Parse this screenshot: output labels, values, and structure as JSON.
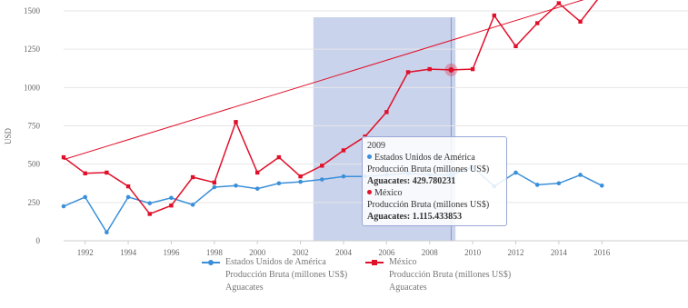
{
  "colors": {
    "usa": "#3b8fd9",
    "mexico": "#e0102a",
    "trend": "#e0102a",
    "highlight_band": "#9eaedd",
    "crosshair": "#8897cf",
    "grid": "#e6e6e6"
  },
  "chart_data": {
    "type": "line",
    "ylabel": "USD",
    "xlabel": "",
    "xlim": [
      1991,
      2020
    ],
    "ylim": [
      0,
      1500
    ],
    "yticks": [
      0,
      250,
      500,
      750,
      1000,
      1250,
      1500
    ],
    "ytick_labels": [
      "0",
      "250",
      "500",
      "750",
      "1000",
      "1250",
      "1500"
    ],
    "xticks": [
      1992,
      1994,
      1996,
      1998,
      2000,
      2002,
      2004,
      2006,
      2008,
      2010,
      2012,
      2014,
      2016
    ],
    "xtick_labels": [
      "1992",
      "1994",
      "1996",
      "1998",
      "2000",
      "2002",
      "2004",
      "2006",
      "2008",
      "2010",
      "2012",
      "2014",
      "2016"
    ],
    "x": [
      1991,
      1992,
      1993,
      1994,
      1995,
      1996,
      1997,
      1998,
      1999,
      2000,
      2001,
      2002,
      2003,
      2004,
      2005,
      2006,
      2007,
      2008,
      2009,
      2010,
      2011,
      2012,
      2013,
      2014,
      2015,
      2016
    ],
    "series": [
      {
        "key": "usa",
        "name": "Estados Unidos de América",
        "name_line2": "Producción Bruta (millones US$)",
        "name_line3": "Aguacates",
        "values": [
          225,
          285,
          55,
          285,
          245,
          280,
          235,
          350,
          360,
          340,
          375,
          385,
          400,
          420,
          420,
          430,
          440,
          430,
          430,
          480,
          355,
          445,
          365,
          375,
          430,
          360
        ]
      },
      {
        "key": "mexico",
        "name": "México",
        "name_line2": "Producción Bruta (millones US$)",
        "name_line3": "Aguacates",
        "values": [
          545,
          440,
          445,
          355,
          175,
          230,
          415,
          380,
          775,
          445,
          545,
          420,
          490,
          590,
          680,
          840,
          1100,
          1120,
          1115,
          1120,
          1470,
          1270,
          1420,
          1550,
          1430,
          1610
        ]
      }
    ],
    "trendline": {
      "series": "México",
      "from": [
        1991,
        530
      ],
      "to": [
        2016,
        1610
      ]
    },
    "highlight_band": {
      "from": 2002.6,
      "to": 2009.2
    },
    "crosshair_x": 2009
  },
  "tooltip": {
    "year": "2009",
    "s1_name": "Estados Unidos de América",
    "s1_metric": "Producción Bruta (millones US$)",
    "s1_value_line": "Aguacates: 429.780231",
    "s2_name": "México",
    "s2_metric": "Producción Bruta (millones US$)",
    "s2_value_line": "Aguacates: 1.115.433853"
  }
}
